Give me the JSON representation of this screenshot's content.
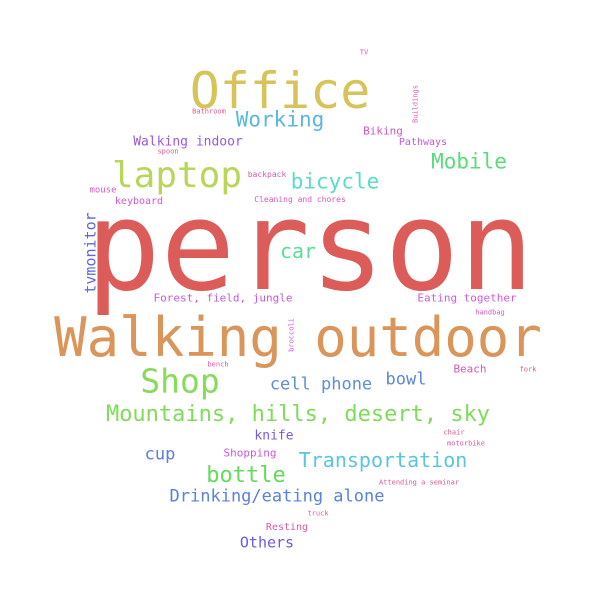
{
  "words": [
    {
      "text": "person",
      "color": "#dc5c5a"
    },
    {
      "text": "Walking outdoor",
      "color": "#d9955a"
    },
    {
      "text": "Office",
      "color": "#d6c45a"
    },
    {
      "text": "laptop",
      "color": "#b8d65a"
    },
    {
      "text": "Shop",
      "color": "#86dc5a"
    },
    {
      "text": "Mountains, hills, desert, sky",
      "color": "#7fdc5a"
    },
    {
      "text": "Working",
      "color": "#5ab8dc"
    },
    {
      "text": "Mobile",
      "color": "#5adc7a"
    },
    {
      "text": "bicycle",
      "color": "#5adcc8"
    },
    {
      "text": "car",
      "color": "#5adc9c"
    },
    {
      "text": "bottle",
      "color": "#62dc5a"
    },
    {
      "text": "Transportation",
      "color": "#5ac6dc"
    },
    {
      "text": "Drinking/eating alone",
      "color": "#5a82dc"
    },
    {
      "text": "cell phone",
      "color": "#5a8edc"
    },
    {
      "text": "bowl",
      "color": "#5a86dc"
    },
    {
      "text": "cup",
      "color": "#5a80dc"
    },
    {
      "text": "knife",
      "color": "#7a5adc"
    },
    {
      "text": "Others",
      "color": "#6a5adc"
    },
    {
      "text": "tvmonitor",
      "color": "#5a6adc"
    },
    {
      "text": "Walking indoor",
      "color": "#9a5adc"
    },
    {
      "text": "Forest, field, jungle",
      "color": "#c45adc"
    },
    {
      "text": "Eating together",
      "color": "#cc5adc"
    },
    {
      "text": "Beach",
      "color": "#d05ab8"
    },
    {
      "text": "Shopping",
      "color": "#c85adc"
    },
    {
      "text": "Biking",
      "color": "#c85ac8"
    },
    {
      "text": "Pathways",
      "color": "#c05adc"
    },
    {
      "text": "Resting",
      "color": "#d65aa8"
    },
    {
      "text": "Cleaning and chores",
      "color": "#d65ac0"
    },
    {
      "text": "backpack",
      "color": "#d65ab0"
    },
    {
      "text": "keyboard",
      "color": "#d05ad0"
    },
    {
      "text": "mouse",
      "color": "#d65ac8"
    },
    {
      "text": "spoon",
      "color": "#dc5aa0"
    },
    {
      "text": "Bathroom",
      "color": "#dc5a98"
    },
    {
      "text": "TV",
      "color": "#dc5aa8"
    },
    {
      "text": "Buildings",
      "color": "#dc5ab4"
    },
    {
      "text": "handbag",
      "color": "#d65ac0"
    },
    {
      "text": "broccoli",
      "color": "#d05ad6"
    },
    {
      "text": "bench",
      "color": "#dc5ab0"
    },
    {
      "text": "fork",
      "color": "#dc5a9a"
    },
    {
      "text": "chair",
      "color": "#dc5a8c"
    },
    {
      "text": "motorbike",
      "color": "#dc5aa4"
    },
    {
      "text": "Attending a seminar",
      "color": "#dc5a92"
    },
    {
      "text": "truck",
      "color": "#dc5aac"
    }
  ]
}
